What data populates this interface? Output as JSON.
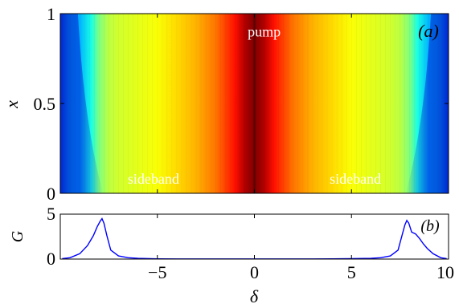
{
  "chart_data": [
    {
      "panel_label": "(a)",
      "type": "heatmap",
      "xlabel": "",
      "ylabel": "x",
      "xlim": [
        -10,
        10
      ],
      "ylim": [
        0,
        1
      ],
      "yticks": [
        0,
        0.5,
        1
      ],
      "ytick_labels": [
        "0",
        "0.5",
        "1"
      ],
      "annotations": [
        {
          "text": "pump",
          "x": 0.5,
          "y": 0.9
        },
        {
          "text": "sideband",
          "x": -5.2,
          "y": 0.08
        },
        {
          "text": "sideband",
          "x": 5.2,
          "y": 0.08
        }
      ],
      "intensity_profile": {
        "x": [
          -9.6,
          -9.0,
          -8.4,
          -8.0,
          -7.5,
          -7.0,
          -6.0,
          -5.0,
          -4.0,
          -3.0,
          -2.0,
          -1.0,
          -0.5,
          0.0,
          0.5,
          1.0,
          2.0,
          3.0,
          4.0,
          5.0,
          6.0,
          7.0,
          7.5,
          8.0,
          8.4,
          9.0,
          9.6
        ],
        "level": [
          0.38,
          0.3,
          0.4,
          0.5,
          0.56,
          0.58,
          0.6,
          0.62,
          0.66,
          0.7,
          0.76,
          0.86,
          0.95,
          1.0,
          0.95,
          0.86,
          0.76,
          0.7,
          0.66,
          0.62,
          0.6,
          0.58,
          0.56,
          0.5,
          0.4,
          0.3,
          0.38
        ]
      },
      "colormap": [
        "#00007f",
        "#0000ff",
        "#007fff",
        "#00ffff",
        "#7fff7f",
        "#ffff00",
        "#ff7f00",
        "#ff0000",
        "#7f0000"
      ],
      "grid": false
    },
    {
      "panel_label": "(b)",
      "type": "line",
      "xlabel": "δ",
      "ylabel": "G",
      "xlim": [
        -10,
        10
      ],
      "ylim": [
        0,
        5
      ],
      "xticks": [
        -5,
        0,
        5,
        10
      ],
      "xtick_labels": [
        "−5",
        "0",
        "5",
        "10"
      ],
      "yticks": [
        0,
        5
      ],
      "ytick_labels": [
        "0",
        "5"
      ],
      "series": [
        {
          "color": "#0000ff",
          "x": [
            -9.9,
            -9.5,
            -9.0,
            -8.6,
            -8.3,
            -8.1,
            -7.95,
            -7.85,
            -7.75,
            -7.6,
            -7.4,
            -7.0,
            -6.5,
            -6.0,
            -5.0,
            -4.0,
            -3.0,
            -2.0,
            -1.0,
            0.0,
            1.0,
            2.0,
            3.0,
            4.0,
            5.0,
            6.0,
            6.5,
            7.0,
            7.4,
            7.6,
            7.75,
            7.85,
            7.95,
            8.1,
            8.3,
            8.5,
            8.7,
            8.9,
            9.2,
            9.6,
            9.9
          ],
          "y": [
            0.05,
            0.15,
            0.6,
            1.5,
            2.6,
            3.6,
            4.2,
            4.5,
            4.0,
            2.6,
            1.0,
            0.35,
            0.15,
            0.08,
            0.03,
            0.02,
            0.02,
            0.02,
            0.02,
            0.02,
            0.02,
            0.02,
            0.02,
            0.03,
            0.05,
            0.08,
            0.15,
            0.35,
            1.0,
            2.6,
            3.8,
            4.3,
            4.0,
            3.0,
            2.8,
            2.3,
            1.7,
            1.2,
            0.6,
            0.15,
            0.05
          ]
        }
      ],
      "grid": false
    }
  ]
}
